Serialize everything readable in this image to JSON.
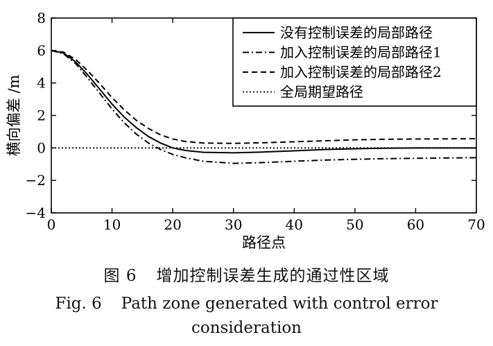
{
  "chart_data": {
    "type": "line",
    "xlabel": "路径点",
    "ylabel": "横向偏差 /m",
    "xlim": [
      0,
      70
    ],
    "ylim": [
      -4,
      8
    ],
    "xticks": [
      "0",
      "10",
      "20",
      "30",
      "40",
      "50",
      "60",
      "70"
    ],
    "yticks": [
      "-4",
      "-2",
      "0",
      "2",
      "4",
      "6",
      "8"
    ],
    "grid": false,
    "legend_position": "top-right",
    "x": [
      0,
      2,
      4,
      6,
      8,
      10,
      12,
      14,
      16,
      18,
      20,
      22,
      25,
      30,
      35,
      40,
      45,
      50,
      55,
      60,
      65,
      70
    ],
    "series": [
      {
        "name": "没有控制误差的局部路径",
        "style": "solid",
        "values": [
          6.0,
          5.85,
          5.3,
          4.5,
          3.6,
          2.7,
          1.9,
          1.25,
          0.7,
          0.3,
          0.0,
          -0.15,
          -0.27,
          -0.3,
          -0.25,
          -0.18,
          -0.1,
          -0.05,
          -0.02,
          0.0,
          0.0,
          0.0
        ]
      },
      {
        "name": "加入控制误差的局部路径1",
        "style": "dashdot",
        "values": [
          6.0,
          5.8,
          5.2,
          4.3,
          3.35,
          2.4,
          1.55,
          0.85,
          0.3,
          -0.1,
          -0.4,
          -0.6,
          -0.82,
          -0.95,
          -0.9,
          -0.82,
          -0.75,
          -0.7,
          -0.66,
          -0.64,
          -0.62,
          -0.6
        ]
      },
      {
        "name": "加入控制误差的局部路径2",
        "style": "dashed",
        "values": [
          6.0,
          5.9,
          5.45,
          4.75,
          3.95,
          3.1,
          2.35,
          1.7,
          1.2,
          0.8,
          0.55,
          0.4,
          0.3,
          0.28,
          0.32,
          0.38,
          0.44,
          0.5,
          0.53,
          0.55,
          0.56,
          0.57
        ]
      },
      {
        "name": "全局期望路径",
        "style": "dotted",
        "values": [
          0,
          0,
          0,
          0,
          0,
          0,
          0,
          0,
          0,
          0,
          0,
          0,
          0,
          0,
          0,
          0,
          0,
          0,
          0,
          0,
          0,
          0
        ]
      }
    ]
  },
  "caption": {
    "cn_fig": "图 6",
    "cn_title": "增加控制误差生成的通过性区域",
    "en_fig": "Fig. 6",
    "en_title_line1": "Path zone generated with control error",
    "en_title_line2": "consideration"
  }
}
